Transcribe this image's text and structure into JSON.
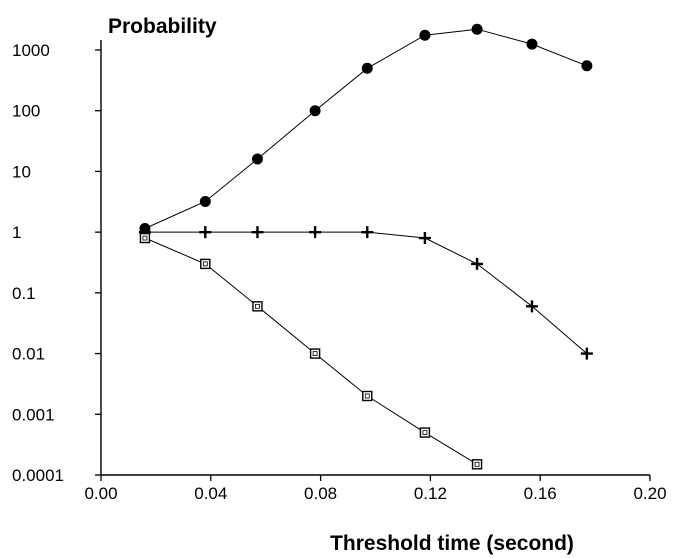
{
  "chart_data": {
    "type": "line",
    "ylabel": "Probability",
    "xlabel": "Threshold time (second)",
    "y_scale": "log",
    "xlim": [
      0.0,
      0.2
    ],
    "ylim": [
      0.0001,
      1000
    ],
    "x_ticks": [
      0.0,
      0.04,
      0.08,
      0.12,
      0.16,
      0.2
    ],
    "x_tick_labels": [
      "0.00",
      "0.04",
      "0.08",
      "0.12",
      "0.16",
      "0.20"
    ],
    "y_ticks": [
      0.0001,
      0.001,
      0.01,
      0.1,
      1,
      10,
      100,
      1000
    ],
    "y_tick_labels": [
      "0.0001",
      "0.001",
      "0.01",
      "0.1",
      "1",
      "10",
      "100",
      "1000"
    ],
    "grid": false,
    "legend": "none",
    "series": [
      {
        "marker": "filled-circle",
        "color": "#000000",
        "x": [
          0.016,
          0.038,
          0.057,
          0.078,
          0.097,
          0.118,
          0.137,
          0.157,
          0.177
        ],
        "y": [
          1.15,
          3.2,
          16,
          100,
          500,
          1750,
          2200,
          1250,
          550
        ]
      },
      {
        "marker": "plus",
        "color": "#000000",
        "x": [
          0.016,
          0.038,
          0.057,
          0.078,
          0.097,
          0.118,
          0.137,
          0.157,
          0.177
        ],
        "y": [
          1,
          1,
          1,
          1,
          1,
          0.8,
          0.3,
          0.06,
          0.01
        ]
      },
      {
        "marker": "open-square",
        "color": "#000000",
        "x": [
          0.016,
          0.038,
          0.057,
          0.078,
          0.097,
          0.118,
          0.137
        ],
        "y": [
          0.8,
          0.3,
          0.06,
          0.01,
          0.002,
          0.0005,
          0.00015
        ]
      }
    ]
  }
}
